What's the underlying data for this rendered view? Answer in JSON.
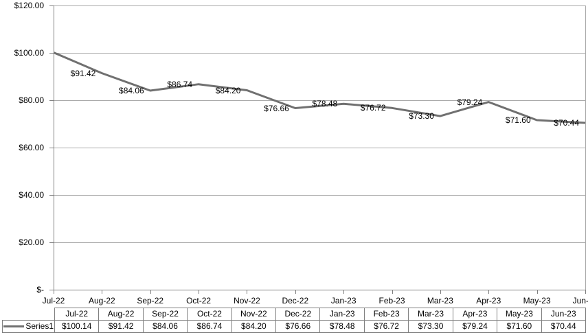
{
  "chart_data": {
    "type": "line",
    "title": "",
    "xlabel": "",
    "ylabel": "",
    "categories": [
      "Jul-22",
      "Aug-22",
      "Sep-22",
      "Oct-22",
      "Nov-22",
      "Dec-22",
      "Jan-23",
      "Feb-23",
      "Mar-23",
      "Apr-23",
      "May-23",
      "Jun-23"
    ],
    "series": [
      {
        "name": "Series1",
        "values": [
          100.14,
          91.42,
          84.06,
          86.74,
          84.2,
          76.66,
          78.48,
          76.72,
          73.3,
          79.24,
          71.6,
          70.44
        ]
      }
    ],
    "point_labels": [
      "",
      "$91.42",
      "$84.06",
      "$86.74",
      "$84.20",
      "$76.66",
      "$78.48",
      "$76.72",
      "$73.30",
      "$79.24",
      "$71.60",
      "$70.44"
    ],
    "y_ticks": [
      {
        "label": "$120.00",
        "value": 120
      },
      {
        "label": "$100.00",
        "value": 100
      },
      {
        "label": "$80.00",
        "value": 80
      },
      {
        "label": "$60.00",
        "value": 60
      },
      {
        "label": "$40.00",
        "value": 40
      },
      {
        "label": "$20.00",
        "value": 20
      },
      {
        "label": "$-",
        "value": 0
      }
    ],
    "ylim": [
      0,
      120
    ],
    "grid": true,
    "legend_position": "data-table-left",
    "colors": {
      "line": "#707070",
      "grid": "#A9A9A9",
      "axis": "#808080",
      "table_border": "#808080",
      "text": "#000000"
    }
  },
  "data_table": {
    "legend_label": "Series1",
    "columns": [
      "Jul-22",
      "Aug-22",
      "Sep-22",
      "Oct-22",
      "Nov-22",
      "Dec-22",
      "Jan-23",
      "Feb-23",
      "Mar-23",
      "Apr-23",
      "May-23",
      "Jun-23"
    ],
    "values": [
      "$100.14",
      "$91.42",
      "$84.06",
      "$86.74",
      "$84.20",
      "$76.66",
      "$78.48",
      "$76.72",
      "$73.30",
      "$79.24",
      "$71.60",
      "$70.44"
    ]
  }
}
